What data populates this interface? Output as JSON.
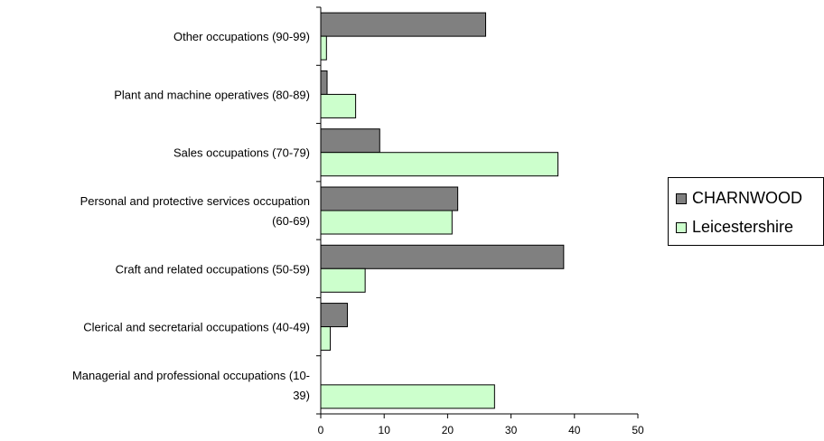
{
  "chart_data": {
    "type": "bar",
    "orientation": "horizontal",
    "categories": [
      [
        "Other occupations (90-99)"
      ],
      [
        "Plant and machine operatives (80-89)"
      ],
      [
        "Sales occupations (70-79)"
      ],
      [
        "Personal and protective services occupation",
        "(60-69)"
      ],
      [
        "Craft and related occupations (50-59)"
      ],
      [
        "Clerical and secretarial occupations (40-49)"
      ],
      [
        "Managerial and professional occupations (10-",
        "39)"
      ]
    ],
    "series": [
      {
        "name": "CHARNWOOD",
        "color": "#808080",
        "values": [
          26,
          1,
          9.3,
          21.6,
          38.3,
          4.2,
          0
        ]
      },
      {
        "name": "Leicestershire",
        "color": "#ccffcc",
        "values": [
          0.9,
          5.5,
          37.4,
          20.7,
          7,
          1.5,
          27.4
        ]
      }
    ],
    "xlim": [
      0,
      50
    ],
    "xticks": [
      "0",
      "10",
      "20",
      "30",
      "40",
      "50"
    ],
    "grid": false,
    "legend_position": "right",
    "title": "",
    "xlabel": "",
    "ylabel": ""
  }
}
